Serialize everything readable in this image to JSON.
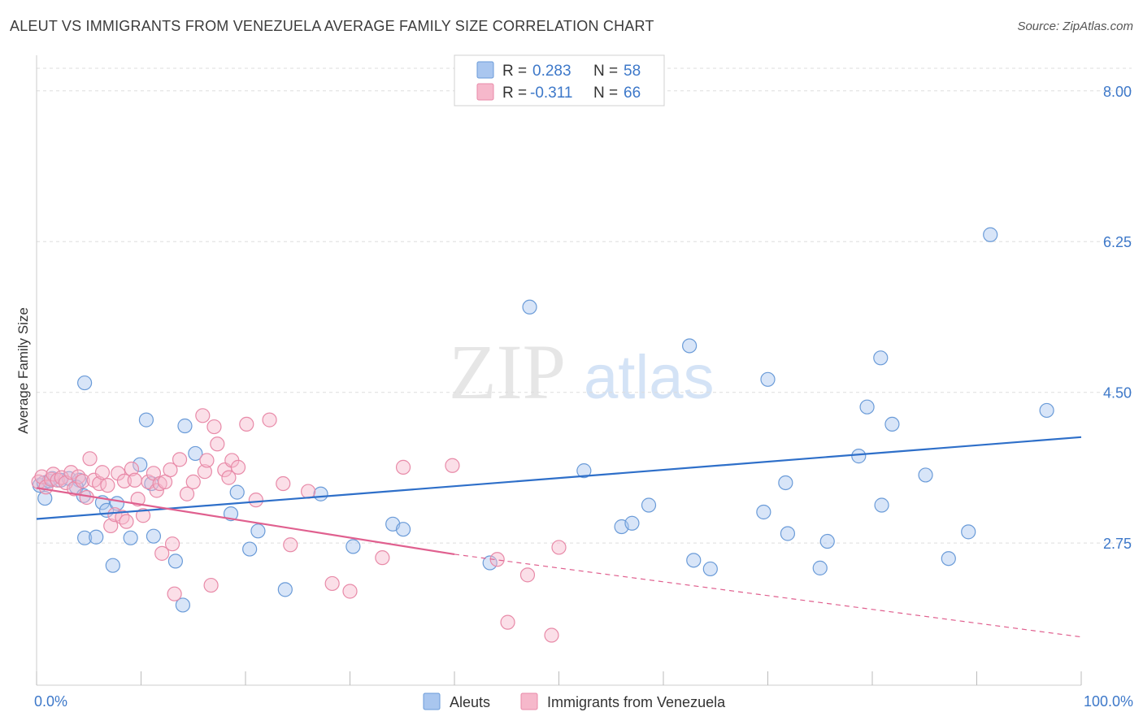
{
  "header": {
    "title": "ALEUT VS IMMIGRANTS FROM VENEZUELA AVERAGE FAMILY SIZE CORRELATION CHART",
    "source": "Source: ZipAtlas.com"
  },
  "watermark": {
    "zip": "ZIP",
    "atlas": "atlas"
  },
  "colors": {
    "aleut_fill": "#a9c6ef",
    "aleut_stroke": "#6a9bd8",
    "aleut_line": "#2e6fc9",
    "venezuela_fill": "#f6b8cb",
    "venezuela_stroke": "#e88aa8",
    "venezuela_line": "#e0608f",
    "tick_label": "#3d78c9",
    "grid": "#dddddd"
  },
  "legend": {
    "rows": [
      {
        "r_label": "R =",
        "r_value": "0.283",
        "n_label": "N =",
        "n_value": "58"
      },
      {
        "r_label": "R =",
        "r_value": "-0.311",
        "n_label": "N =",
        "n_value": "66"
      }
    ]
  },
  "chart_data": {
    "type": "scatter",
    "xlabel": "",
    "ylabel": "Average Family Size",
    "xlim": [
      0,
      100
    ],
    "ylim": [
      1.1,
      8.3
    ],
    "x_tick_labels": [
      "0.0%",
      "100.0%"
    ],
    "y_ticks": [
      2.75,
      4.5,
      6.25,
      8.0
    ],
    "y_tick_labels": [
      "2.75",
      "4.50",
      "6.25",
      "8.00"
    ],
    "grid": true,
    "legend_position": "top-center",
    "series": [
      {
        "name": "Aleuts",
        "trend": {
          "x": [
            0,
            100
          ],
          "y": [
            3.03,
            3.98
          ]
        },
        "points": [
          [
            0.3,
            3.42
          ],
          [
            0.7,
            3.45
          ],
          [
            0.8,
            3.27
          ],
          [
            1.2,
            3.47
          ],
          [
            1.5,
            3.5
          ],
          [
            2.3,
            3.48
          ],
          [
            3.1,
            3.5
          ],
          [
            4.1,
            3.48
          ],
          [
            3.8,
            3.4
          ],
          [
            4.5,
            3.3
          ],
          [
            4.6,
            4.61
          ],
          [
            4.6,
            2.81
          ],
          [
            5.7,
            2.82
          ],
          [
            6.3,
            3.22
          ],
          [
            6.7,
            3.13
          ],
          [
            7.3,
            2.49
          ],
          [
            7.7,
            3.21
          ],
          [
            9.0,
            2.81
          ],
          [
            9.9,
            3.66
          ],
          [
            10.5,
            4.18
          ],
          [
            11.0,
            3.44
          ],
          [
            11.2,
            2.83
          ],
          [
            13.3,
            2.54
          ],
          [
            14.2,
            4.11
          ],
          [
            14.0,
            2.03
          ],
          [
            15.2,
            3.79
          ],
          [
            18.6,
            3.09
          ],
          [
            19.2,
            3.34
          ],
          [
            20.4,
            2.68
          ],
          [
            21.2,
            2.89
          ],
          [
            23.8,
            2.21
          ],
          [
            27.2,
            3.32
          ],
          [
            30.3,
            2.71
          ],
          [
            34.1,
            2.97
          ],
          [
            35.1,
            2.91
          ],
          [
            43.4,
            2.52
          ],
          [
            47.2,
            5.49
          ],
          [
            52.4,
            3.59
          ],
          [
            56.0,
            2.94
          ],
          [
            57.0,
            2.98
          ],
          [
            58.6,
            3.19
          ],
          [
            62.9,
            2.55
          ],
          [
            62.5,
            5.04
          ],
          [
            64.5,
            2.45
          ],
          [
            69.6,
            3.11
          ],
          [
            70.0,
            4.65
          ],
          [
            71.7,
            3.45
          ],
          [
            71.9,
            2.86
          ],
          [
            75.7,
            2.77
          ],
          [
            75.0,
            2.46
          ],
          [
            78.7,
            3.76
          ],
          [
            79.5,
            4.33
          ],
          [
            80.8,
            4.9
          ],
          [
            80.9,
            3.19
          ],
          [
            81.9,
            4.13
          ],
          [
            85.1,
            3.54
          ],
          [
            87.3,
            2.57
          ],
          [
            89.2,
            2.88
          ],
          [
            91.3,
            6.33
          ],
          [
            96.7,
            4.29
          ]
        ]
      },
      {
        "name": "Immigrants from Venezuela",
        "trend": {
          "x": [
            0,
            40
          ],
          "y": [
            3.39,
            2.62
          ]
        },
        "trend_dashed": {
          "x": [
            40,
            100
          ],
          "y": [
            2.62,
            1.66
          ]
        },
        "points": [
          [
            0.2,
            3.46
          ],
          [
            0.5,
            3.52
          ],
          [
            0.9,
            3.4
          ],
          [
            1.4,
            3.49
          ],
          [
            1.6,
            3.55
          ],
          [
            2.0,
            3.48
          ],
          [
            2.4,
            3.51
          ],
          [
            2.8,
            3.45
          ],
          [
            3.3,
            3.57
          ],
          [
            3.6,
            3.38
          ],
          [
            4.0,
            3.52
          ],
          [
            4.4,
            3.47
          ],
          [
            4.8,
            3.28
          ],
          [
            5.1,
            3.73
          ],
          [
            5.5,
            3.48
          ],
          [
            6.0,
            3.44
          ],
          [
            6.3,
            3.57
          ],
          [
            6.8,
            3.42
          ],
          [
            7.1,
            2.95
          ],
          [
            7.5,
            3.08
          ],
          [
            7.8,
            3.56
          ],
          [
            8.2,
            3.05
          ],
          [
            8.4,
            3.47
          ],
          [
            8.6,
            3.0
          ],
          [
            9.1,
            3.61
          ],
          [
            9.4,
            3.48
          ],
          [
            9.7,
            3.26
          ],
          [
            10.2,
            3.07
          ],
          [
            10.7,
            3.46
          ],
          [
            11.2,
            3.56
          ],
          [
            11.5,
            3.36
          ],
          [
            11.8,
            3.44
          ],
          [
            12.0,
            2.63
          ],
          [
            12.3,
            3.46
          ],
          [
            12.8,
            3.6
          ],
          [
            13.0,
            2.74
          ],
          [
            13.2,
            2.16
          ],
          [
            13.7,
            3.72
          ],
          [
            14.4,
            3.32
          ],
          [
            15.0,
            3.46
          ],
          [
            15.9,
            4.23
          ],
          [
            16.1,
            3.58
          ],
          [
            16.3,
            3.71
          ],
          [
            16.7,
            2.26
          ],
          [
            17.0,
            4.1
          ],
          [
            17.3,
            3.9
          ],
          [
            18.0,
            3.6
          ],
          [
            18.4,
            3.51
          ],
          [
            18.7,
            3.71
          ],
          [
            19.3,
            3.63
          ],
          [
            20.1,
            4.13
          ],
          [
            21.0,
            3.25
          ],
          [
            22.3,
            4.18
          ],
          [
            23.6,
            3.44
          ],
          [
            24.3,
            2.73
          ],
          [
            26.0,
            3.35
          ],
          [
            28.3,
            2.28
          ],
          [
            30.0,
            2.19
          ],
          [
            33.1,
            2.58
          ],
          [
            35.1,
            3.63
          ],
          [
            39.8,
            3.65
          ],
          [
            44.1,
            2.56
          ],
          [
            45.1,
            1.83
          ],
          [
            47.0,
            2.38
          ],
          [
            49.3,
            1.68
          ],
          [
            50.0,
            2.7
          ]
        ]
      }
    ]
  }
}
